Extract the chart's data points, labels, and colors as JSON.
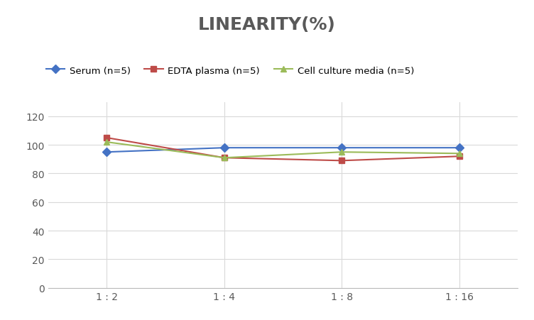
{
  "title": "LINEARITY(%)",
  "x_labels": [
    "1 : 2",
    "1 : 4",
    "1 : 8",
    "1 : 16"
  ],
  "x_positions": [
    0,
    1,
    2,
    3
  ],
  "series": [
    {
      "label": "Serum (n=5)",
      "values": [
        95,
        98,
        98,
        98
      ],
      "color": "#4472C4",
      "marker": "D",
      "linewidth": 1.5
    },
    {
      "label": "EDTA plasma (n=5)",
      "values": [
        105,
        91,
        89,
        92
      ],
      "color": "#BE4B48",
      "marker": "s",
      "linewidth": 1.5
    },
    {
      "label": "Cell culture media (n=5)",
      "values": [
        102,
        91,
        95,
        94
      ],
      "color": "#9BBB59",
      "marker": "^",
      "linewidth": 1.5
    }
  ],
  "ylim": [
    0,
    130
  ],
  "yticks": [
    0,
    20,
    40,
    60,
    80,
    100,
    120
  ],
  "grid_color": "#D9D9D9",
  "background_color": "#FFFFFF",
  "title_fontsize": 18,
  "title_color": "#595959",
  "legend_fontsize": 9.5,
  "tick_fontsize": 10,
  "tick_color": "#595959"
}
